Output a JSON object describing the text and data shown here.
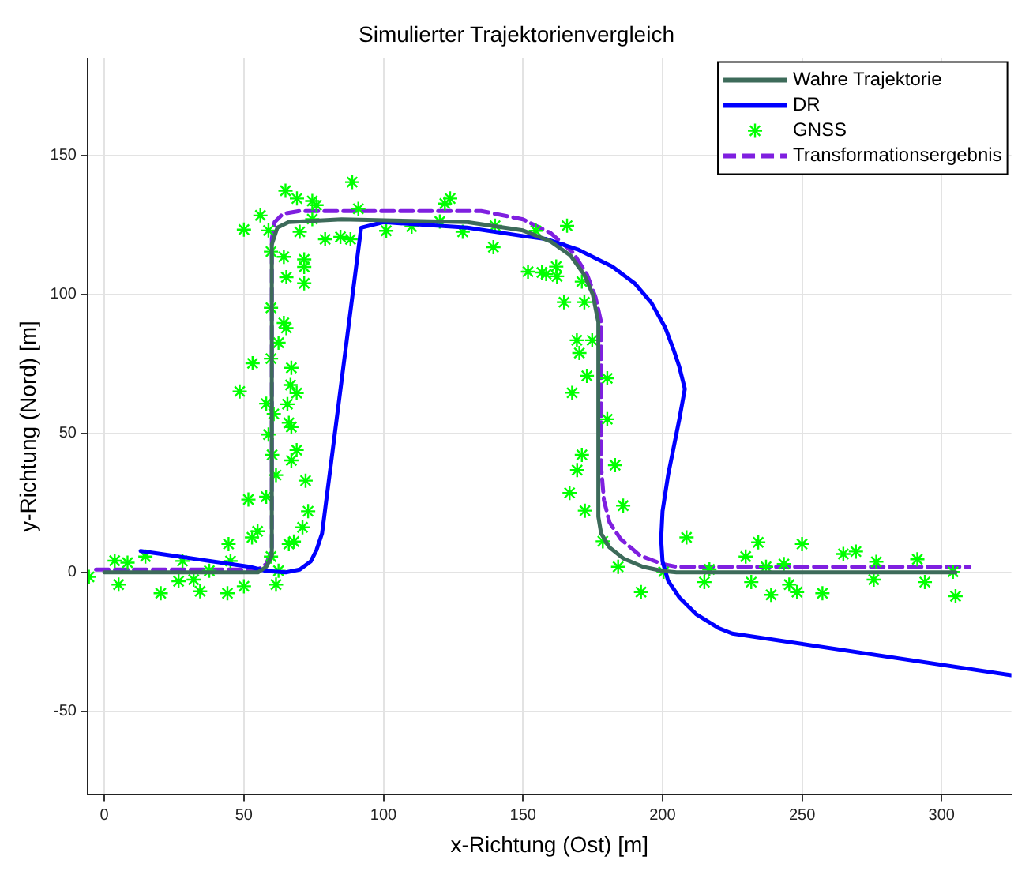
{
  "chart_data": {
    "type": "line",
    "title": "Simulierter Trajektorienvergleich",
    "xlabel": "x-Richtung (Ost) [m]",
    "ylabel": "y-Richtung (Nord) [m]",
    "xlim": [
      -6,
      325
    ],
    "ylim": [
      -80,
      185
    ],
    "xticks": [
      0,
      50,
      100,
      150,
      200,
      250,
      300
    ],
    "yticks": [
      -50,
      0,
      50,
      100,
      150
    ],
    "grid": true,
    "legend": "top right",
    "series": [
      {
        "name": "Wahre Trajektorie",
        "type": "line",
        "color": "#3d6b5a",
        "line_style": "solid",
        "marker": "none",
        "x": [
          0,
          55,
          58,
          60,
          60,
          62,
          66,
          85,
          130,
          150,
          160,
          167,
          172,
          175,
          177,
          177,
          178,
          181,
          186,
          193,
          200,
          205,
          305
        ],
        "values": [
          0,
          0,
          2,
          6,
          118,
          124,
          126,
          127,
          126,
          123,
          119,
          114,
          107,
          100,
          90,
          20,
          14,
          9,
          5,
          2,
          0.5,
          0,
          0
        ]
      },
      {
        "name": "DR",
        "type": "line",
        "color": "#0000ff",
        "line_style": "solid",
        "marker": "none",
        "x": [
          13,
          52,
          58,
          65,
          70,
          74,
          76,
          78,
          92,
          100,
          130,
          150,
          158,
          170,
          182,
          190,
          196,
          201,
          204,
          206,
          207,
          208,
          206,
          204,
          202,
          200,
          199.5,
          200,
          202,
          206,
          212,
          220,
          225,
          325
        ],
        "values": [
          7.7,
          2,
          0.5,
          0,
          1,
          4,
          8,
          14,
          124,
          126,
          124,
          121,
          120,
          116,
          110,
          104,
          97,
          88,
          80,
          74,
          70,
          66,
          55,
          45,
          35,
          22,
          12,
          4,
          -3,
          -9,
          -15,
          -20,
          -22,
          -37
        ]
      },
      {
        "name": "GNSS",
        "type": "scatter",
        "color": "#00ff00",
        "marker": "cross",
        "x": [
          -5.5,
          3.7,
          8.3,
          5.1,
          14.7,
          20.2,
          26.6,
          28,
          32,
          34.3,
          37.6,
          44.5,
          44.1,
          45.2,
          50,
          52.9,
          54.9,
          51.6,
          53.1,
          48.5,
          50,
          55.9,
          59.7,
          61.5,
          62.4,
          66.1,
          67.9,
          71,
          73,
          72.1,
          68.9,
          67,
          65.6,
          68.9,
          66.7,
          67,
          59.7,
          65.2,
          64.3,
          59.7,
          65.2,
          71.6,
          71.6,
          71.6,
          64.3,
          59.7,
          58.8,
          64.9,
          69,
          74.5,
          76,
          70,
          74.5,
          79.1,
          84.6,
          88.2,
          88.8,
          91,
          101,
          110.1,
          120.2,
          123.9,
          122,
          128.4,
          139.4,
          156.8,
          162.2,
          58.8,
          61.5,
          60.1,
          60.7,
          58,
          62.4,
          58,
          67,
          66.1,
          165.8,
          140,
          154.6,
          151.8,
          158.3,
          161.9,
          164.7,
          171.1,
          172,
          169.3,
          174.8,
          170.2,
          172.9,
          180.2,
          167.6,
          180.2,
          171.1,
          183,
          169.4,
          166.7,
          172.2,
          185.9,
          178.6,
          184.1,
          192.3,
          200.4,
          208.6,
          216.8,
          215,
          229.8,
          234.3,
          231.8,
          238.9,
          245.4,
          250,
          248.2,
          257.3,
          264.8,
          269.3,
          275.7,
          276.6,
          291.3,
          294,
          305,
          304.1,
          237.1,
          243.5
        ],
        "values": [
          -1.6,
          4.2,
          3.5,
          -4.4,
          5.7,
          -7.5,
          -3.2,
          4.1,
          -2.6,
          -6.8,
          0.6,
          10.2,
          -7.5,
          4.1,
          -5,
          12.6,
          14.8,
          26.2,
          75.2,
          65.1,
          123.3,
          128.4,
          5.7,
          -4.4,
          0.6,
          10.2,
          11.1,
          16.2,
          22,
          33,
          44,
          40.3,
          60.5,
          64.5,
          67.4,
          73.6,
          76.9,
          87.9,
          89.7,
          95.2,
          106.2,
          104,
          112.6,
          109.9,
          113.5,
          115.4,
          123,
          137.3,
          134.5,
          133.6,
          132.1,
          122.5,
          127.1,
          119.8,
          120.7,
          119.8,
          140.4,
          130.8,
          122.9,
          124.4,
          126.2,
          134.5,
          132.7,
          122.5,
          117,
          107.9,
          106.5,
          49.6,
          35,
          42.3,
          57,
          60.7,
          82.6,
          27.2,
          52.3,
          53.8,
          124.7,
          124.7,
          122.9,
          108.2,
          107.3,
          110,
          97.2,
          104.6,
          97.2,
          83.5,
          83.5,
          78.9,
          70.7,
          69.8,
          64.6,
          55.1,
          42.3,
          38.6,
          36.8,
          28.6,
          22.2,
          24,
          11.2,
          2,
          -7.1,
          0.2,
          12.6,
          1.1,
          -3.5,
          5.7,
          10.8,
          -3.5,
          -8.1,
          -4.4,
          10.2,
          -7.1,
          -7.5,
          6.6,
          7.5,
          -2.6,
          3.8,
          4.7,
          -3.5,
          -8.6,
          0.2,
          2,
          3
        ]
      },
      {
        "name": "Transformationsergebnis",
        "type": "line",
        "color": "#7f1fe0",
        "line_style": "dashed",
        "marker": "none",
        "x": [
          -3,
          55,
          58,
          60,
          60,
          61,
          64,
          70,
          135,
          150,
          160,
          168,
          173,
          176,
          178,
          178,
          179,
          181,
          185,
          192,
          200,
          205,
          310
        ],
        "values": [
          1,
          1,
          3,
          8,
          120,
          126,
          129,
          130,
          130,
          127,
          122,
          115,
          107,
          99,
          90,
          38,
          26,
          18,
          12,
          6,
          3,
          2,
          2
        ]
      }
    ]
  }
}
